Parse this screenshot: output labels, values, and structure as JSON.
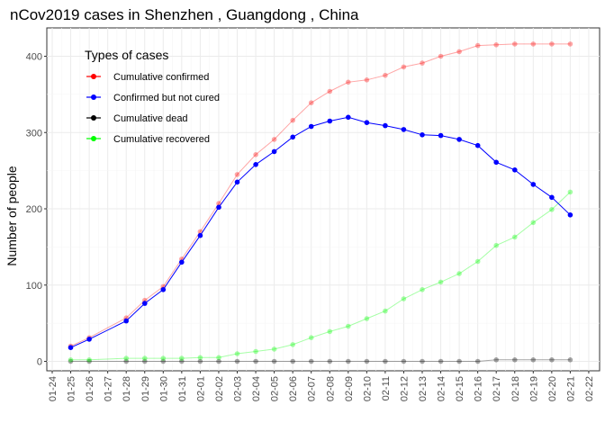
{
  "chart_data": {
    "type": "line",
    "title": "nCov2019 cases in Shenzhen , Guangdong , China",
    "xlabel": "",
    "ylabel": "Number of people",
    "x_ticks": [
      "01-24",
      "01-25",
      "01-26",
      "01-27",
      "01-28",
      "01-29",
      "01-30",
      "01-31",
      "02-01",
      "02-02",
      "02-03",
      "02-04",
      "02-05",
      "02-06",
      "02-07",
      "02-08",
      "02-09",
      "02-10",
      "02-11",
      "02-12",
      "02-13",
      "02-14",
      "02-15",
      "02-16",
      "02-17",
      "02-18",
      "02-19",
      "02-20",
      "02-21",
      "02-22"
    ],
    "y_ticks": [
      "0",
      "100",
      "200",
      "300",
      "400"
    ],
    "ylim": [
      0,
      440
    ],
    "grid": true,
    "legend": {
      "title": "Types of cases",
      "placement": "top-left"
    },
    "x": [
      "01-25",
      "01-26",
      "01-28",
      "01-29",
      "01-30",
      "01-31",
      "02-01",
      "02-02",
      "02-03",
      "02-04",
      "02-05",
      "02-06",
      "02-07",
      "02-08",
      "02-09",
      "02-10",
      "02-11",
      "02-12",
      "02-13",
      "02-14",
      "02-15",
      "02-16",
      "02-17",
      "02-18",
      "02-19",
      "02-20",
      "02-21"
    ],
    "series": [
      {
        "name": "Cumulative confirmed",
        "color": "#ff0000",
        "opacity": 0.35,
        "values": [
          20,
          31,
          57,
          80,
          98,
          134,
          170,
          207,
          245,
          271,
          291,
          316,
          339,
          354,
          366,
          369,
          375,
          386,
          391,
          400,
          406,
          414,
          415,
          416,
          416,
          416,
          416
        ]
      },
      {
        "name": "Confirmed but not cured",
        "color": "#0000ff",
        "opacity": 1,
        "values": [
          18,
          29,
          53,
          76,
          94,
          130,
          165,
          202,
          235,
          258,
          275,
          294,
          308,
          315,
          320,
          313,
          309,
          304,
          297,
          296,
          291,
          283,
          261,
          251,
          232,
          215,
          192
        ]
      },
      {
        "name": "Cumulative dead",
        "color": "#000000",
        "opacity": 0.35,
        "values": [
          0,
          0,
          0,
          0,
          0,
          0,
          0,
          0,
          0,
          0,
          0,
          0,
          0,
          0,
          0,
          0,
          0,
          0,
          0,
          0,
          0,
          0,
          2,
          2,
          2,
          2,
          2
        ]
      },
      {
        "name": "Cumulative recovered",
        "color": "#00ff00",
        "opacity": 0.35,
        "values": [
          2,
          2,
          4,
          4,
          4,
          4,
          5,
          5,
          10,
          13,
          16,
          22,
          31,
          39,
          46,
          56,
          66,
          82,
          94,
          104,
          115,
          131,
          152,
          163,
          182,
          199,
          222
        ]
      }
    ]
  }
}
